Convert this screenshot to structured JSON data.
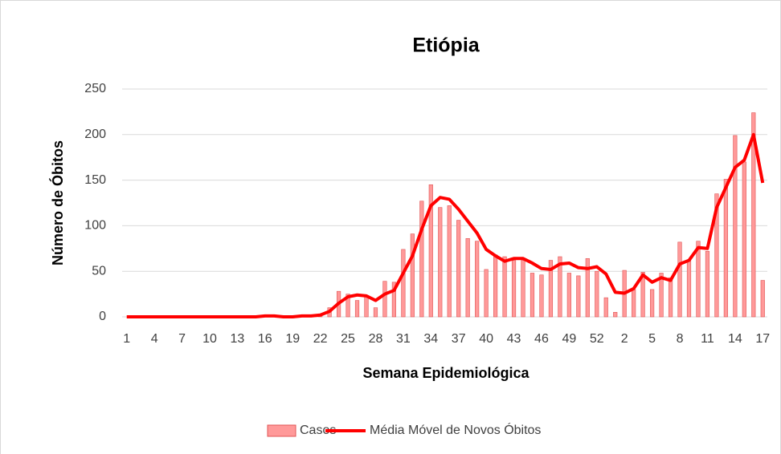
{
  "chart_data": {
    "type": "bar_line",
    "title": "Etiópia",
    "x_label": "Semana Epidemiológica",
    "y_label": "Número de Óbitos",
    "categories": [
      "1",
      null,
      null,
      "4",
      null,
      null,
      "7",
      null,
      null,
      "10",
      null,
      null,
      "13",
      null,
      null,
      "16",
      null,
      null,
      "19",
      null,
      null,
      "22",
      null,
      null,
      "25",
      null,
      null,
      "28",
      null,
      null,
      "31",
      null,
      null,
      "34",
      null,
      null,
      "37",
      null,
      null,
      "40",
      null,
      null,
      "43",
      null,
      null,
      "46",
      null,
      null,
      "49",
      null,
      null,
      "52",
      null,
      null,
      "2",
      null,
      null,
      "5",
      null,
      null,
      "8",
      null,
      null,
      "11",
      null,
      null,
      "14",
      null,
      null,
      "17"
    ],
    "series": [
      {
        "name": "Casos",
        "kind": "bar",
        "color": "#ff9999",
        "edge": "#e05555",
        "values": [
          0,
          0,
          0,
          0,
          0,
          0,
          0,
          0,
          0,
          0,
          0,
          0,
          0,
          0,
          1,
          1,
          1,
          0,
          0,
          0,
          1,
          2,
          10,
          28,
          25,
          18,
          22,
          10,
          39,
          38,
          74,
          91,
          127,
          145,
          120,
          122,
          106,
          86,
          83,
          52,
          68,
          66,
          62,
          62,
          48,
          46,
          62,
          66,
          48,
          45,
          64,
          50,
          21,
          5,
          51,
          30,
          49,
          30,
          48,
          43,
          82,
          62,
          83,
          72,
          135,
          151,
          199,
          170,
          224,
          40
        ]
      },
      {
        "name": "Média Móvel de Novos Óbitos",
        "kind": "line",
        "color": "#ff0000",
        "values": [
          0,
          0,
          0,
          0,
          0,
          0,
          0,
          0,
          0,
          0,
          0,
          0,
          0,
          0,
          0,
          1,
          1,
          0,
          0,
          1,
          1,
          2,
          6,
          15,
          22,
          24,
          23,
          18,
          25,
          29,
          48,
          67,
          96,
          122,
          131,
          129,
          118,
          105,
          92,
          74,
          67,
          61,
          64,
          64,
          59,
          53,
          52,
          58,
          59,
          54,
          53,
          55,
          47,
          27,
          26,
          31,
          46,
          38,
          43,
          40,
          58,
          62,
          76,
          75,
          120,
          142,
          164,
          172,
          200,
          147
        ]
      }
    ],
    "ylim": [
      0,
      250
    ],
    "yticks": [
      0,
      50,
      100,
      150,
      200,
      250
    ],
    "grid": true,
    "legend": "bottom"
  }
}
